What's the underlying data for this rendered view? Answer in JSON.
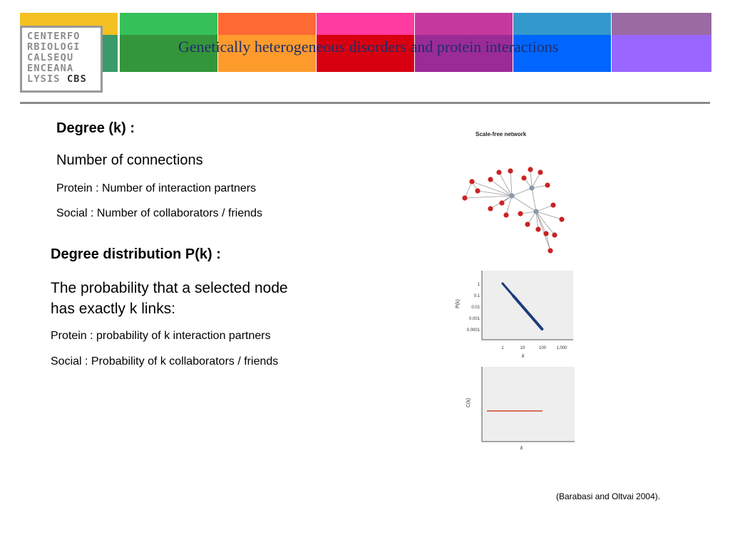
{
  "header": {
    "logo_lines": [
      "CENTERFO",
      "RBIOLOGI",
      "CALSEQU",
      "ENCEANA"
    ],
    "logo_last_prefix": "LYSIS",
    "logo_last_brand": "CBS",
    "title": "Genetically heterogeneous disorders and protein interactions",
    "band_colors": [
      {
        "top": "#f4c022",
        "bottom": "#3a9a6a"
      },
      {
        "top": "#36c05a",
        "bottom": "#33963a"
      },
      {
        "top": "#fe6a32",
        "bottom": "#fe9b2d"
      },
      {
        "top": "#ff3aa0",
        "bottom": "#d80010"
      },
      {
        "top": "#c4399d",
        "bottom": "#9a2b97"
      },
      {
        "top": "#3399cc",
        "bottom": "#0066ff"
      },
      {
        "top": "#9a6aa3",
        "bottom": "#9966ff"
      }
    ]
  },
  "degree": {
    "heading": "Degree (k) :",
    "definition": "Number of connections",
    "protein": "Protein : Number of interaction partners",
    "social": "Social : Number of collaborators / friends"
  },
  "distribution": {
    "heading": "Degree distribution P(k) :",
    "definition_line1": "The probability that a selected node",
    "definition_line2": "has exactly k links:",
    "protein": "Protein :  probability of k interaction partners",
    "social": "Social : Probability of k collaborators / friends"
  },
  "figures": {
    "network_title": "Scale-free network",
    "node_color": "#cc2222",
    "hub_color": "#8898aa",
    "plot1": {
      "ylabel": "P(k)",
      "xlabel": "k",
      "yticks": [
        "1",
        "0.1",
        "0.01",
        "0.001",
        "0.0001"
      ],
      "xticks": [
        "1",
        "10",
        "100",
        "1,000"
      ],
      "line_color": "#1a3a7a"
    },
    "plot2": {
      "ylabel": "C(k)",
      "xlabel": "k",
      "line_color": "#cc2200"
    }
  },
  "citation": "(Barabasi and Oltvai 2004)."
}
